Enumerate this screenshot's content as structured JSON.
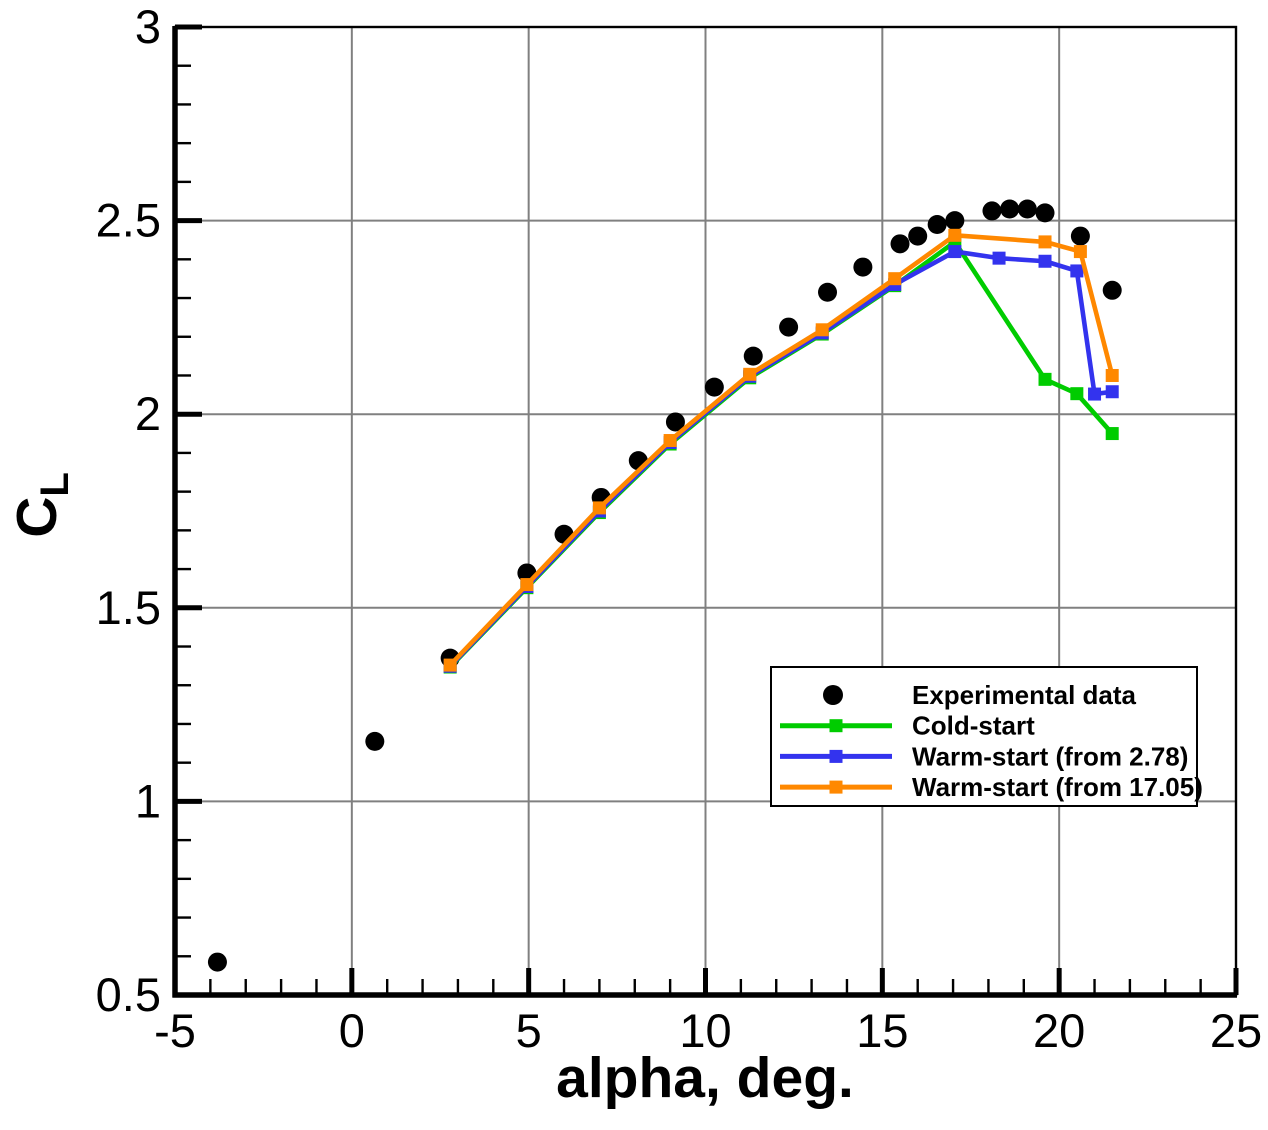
{
  "chart_data": {
    "type": "line",
    "title": "",
    "xlabel": "alpha, deg.",
    "ylabel": "C",
    "ylabel_sub": "L",
    "xlim": [
      -5,
      25
    ],
    "ylim": [
      0.5,
      3
    ],
    "x_major_ticks": [
      -5,
      0,
      5,
      10,
      15,
      20,
      25
    ],
    "x_tick_labels": [
      "-5",
      "0",
      "5",
      "10",
      "15",
      "20",
      "25"
    ],
    "x_minor_step": 1,
    "y_major_ticks": [
      0.5,
      1,
      1.5,
      2,
      2.5,
      3
    ],
    "y_tick_labels": [
      "0.5",
      "1",
      "1.5",
      "2",
      "2.5",
      "3"
    ],
    "y_minor_step": 0.1,
    "grid": true,
    "legend_position": "lower-right",
    "series": [
      {
        "name": "Experimental data",
        "type": "scatter",
        "marker": "circle",
        "color": "#000000",
        "x": [
          -3.8,
          0.65,
          2.78,
          4.95,
          6.0,
          7.05,
          8.1,
          9.15,
          10.25,
          11.35,
          12.35,
          13.45,
          14.45,
          15.5,
          16.0,
          16.55,
          17.05,
          18.1,
          18.6,
          19.1,
          19.6,
          20.6,
          21.5
        ],
        "y": [
          0.585,
          1.155,
          1.37,
          1.59,
          1.69,
          1.785,
          1.88,
          1.98,
          2.07,
          2.15,
          2.225,
          2.315,
          2.38,
          2.44,
          2.46,
          2.49,
          2.5,
          2.525,
          2.53,
          2.53,
          2.52,
          2.46,
          2.32
        ]
      },
      {
        "name": "Cold-start",
        "type": "line",
        "marker": "square",
        "color": "#00CC00",
        "x": [
          2.78,
          4.95,
          7.0,
          9.0,
          11.25,
          13.3,
          15.35,
          17.05,
          19.6,
          20.5,
          21.5
        ],
        "y": [
          1.347,
          1.552,
          1.746,
          1.923,
          2.094,
          2.207,
          2.332,
          2.445,
          2.09,
          2.053,
          1.95
        ]
      },
      {
        "name": "Warm-start (from 2.78)",
        "type": "line",
        "marker": "square",
        "color": "#3333EE",
        "x": [
          2.78,
          4.95,
          7.0,
          9.0,
          11.25,
          13.3,
          15.35,
          17.05,
          18.3,
          19.6,
          20.5,
          21.0,
          21.5
        ],
        "y": [
          1.349,
          1.555,
          1.75,
          1.927,
          2.098,
          2.21,
          2.335,
          2.42,
          2.403,
          2.395,
          2.37,
          2.052,
          2.058
        ]
      },
      {
        "name": "Warm-start (from 17.05)",
        "type": "line",
        "marker": "square",
        "color": "#FF8800",
        "x": [
          2.78,
          4.95,
          7.0,
          9.0,
          11.25,
          13.3,
          15.35,
          17.05,
          19.6,
          20.6,
          21.5
        ],
        "y": [
          1.352,
          1.56,
          1.758,
          1.932,
          2.103,
          2.218,
          2.35,
          2.462,
          2.445,
          2.42,
          2.1
        ]
      }
    ],
    "colors": {
      "grid": "#808080",
      "frame": "#000000",
      "background": "#FFFFFF",
      "legend_border": "#000000",
      "legend_background": "#FFFFFF"
    }
  }
}
